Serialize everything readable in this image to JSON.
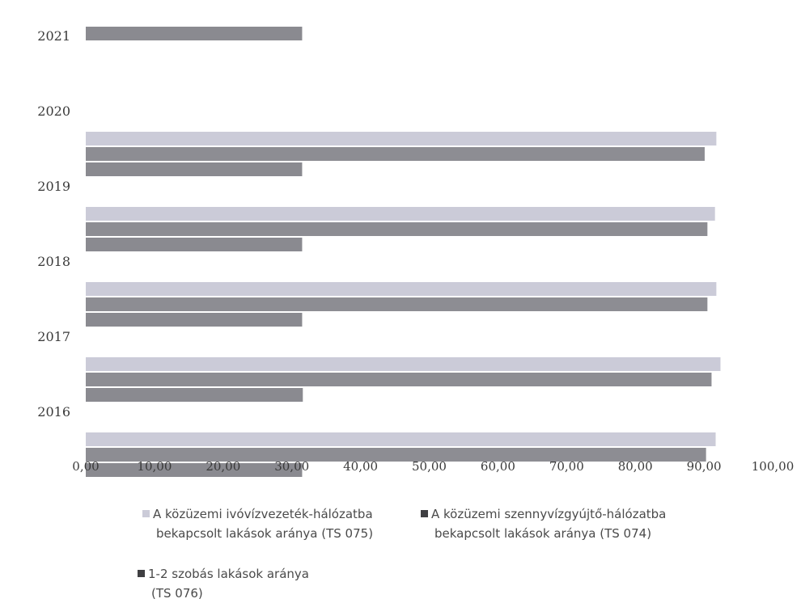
{
  "chart_data": {
    "type": "bar",
    "orientation": "horizontal",
    "categories": [
      "2021",
      "2020",
      "2019",
      "2018",
      "2017",
      "2016"
    ],
    "series": [
      {
        "name": "A közüzemi ivóvízvezeték-hálózatba bekapcsolt lakások aránya (TS 075)",
        "legend_line1": "A közüzemi ivóvízvezeték-hálózatba",
        "legend_line2": "bekapcsolt lakások aránya (TS 075)",
        "color": "#cbcbd8",
        "values": [
          null,
          91.8,
          91.6,
          91.8,
          92.4,
          91.7
        ]
      },
      {
        "name": "A közüzemi szennyvízgyűjtő-hálózatba bekapcsolt lakások aránya (TS 074)",
        "legend_line1": "A közüzemi szennyvízgyújtő-hálózatba",
        "legend_line2": "bekapcsolt lakások aránya (TS 074)",
        "color": "#8d8d93",
        "values": [
          null,
          90.1,
          90.5,
          90.5,
          91.1,
          90.3
        ]
      },
      {
        "name": "1-2 szobás lakások aránya (TS 076)",
        "legend_line1": "1-2 szobás lakások aránya",
        "legend_line2": "(TS 076)",
        "color": "#8a8a90",
        "values": [
          31.5,
          31.5,
          31.5,
          31.5,
          31.6,
          31.5
        ]
      }
    ],
    "xlim": [
      0,
      100
    ],
    "xticks": [
      "0,00",
      "10,00",
      "20,00",
      "30,00",
      "40,00",
      "50,00",
      "60,00",
      "70,00",
      "80,00",
      "90,00",
      "100,00"
    ],
    "grid": false,
    "legend_position": "bottom"
  }
}
